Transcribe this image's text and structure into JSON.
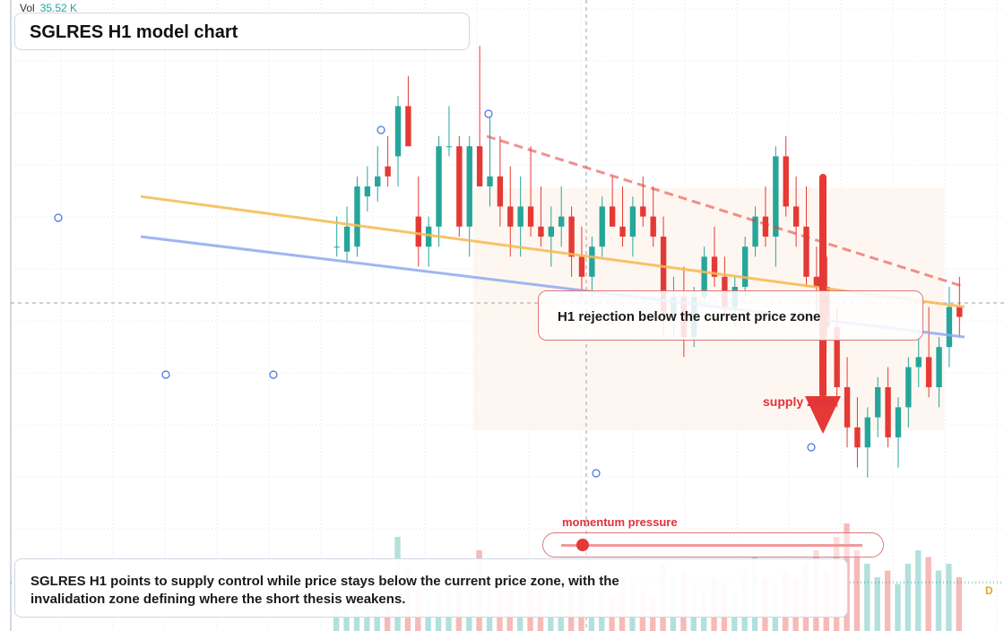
{
  "title": "SGLRES H1 model chart",
  "volume": {
    "label": "Vol",
    "value": "35.52 K"
  },
  "callout": "H1 rejection below the current price zone",
  "zone_label": "supply zone",
  "momentum": {
    "label": "momentum pressure",
    "level": 0.07
  },
  "summary": "SGLRES H1 points to supply control while price stays below the current price zone, with the invalidation zone defining where the short thesis weakens.",
  "badge": "D",
  "colors": {
    "up": "#26a69a",
    "down": "#e53935",
    "ema_fast": "#f6b94f",
    "ema_slow": "#8faaf0",
    "accent": "#e53935",
    "grid": "#e3e6ec"
  },
  "chart_data": {
    "type": "candlestick",
    "title": "SGLRES H1 model chart",
    "ylim": [
      0,
      100
    ],
    "grid": true,
    "candles": [
      {
        "o": 58,
        "h": 64,
        "l": 56,
        "c": 58
      },
      {
        "o": 57,
        "h": 66,
        "l": 55,
        "c": 62
      },
      {
        "o": 58,
        "h": 72,
        "l": 56,
        "c": 70
      },
      {
        "o": 68,
        "h": 74,
        "l": 65,
        "c": 70
      },
      {
        "o": 70,
        "h": 78,
        "l": 67,
        "c": 72
      },
      {
        "o": 74,
        "h": 80,
        "l": 70,
        "c": 72
      },
      {
        "o": 76,
        "h": 88,
        "l": 70,
        "c": 86
      },
      {
        "o": 86,
        "h": 92,
        "l": 78,
        "c": 78
      },
      {
        "o": 64,
        "h": 72,
        "l": 54,
        "c": 58
      },
      {
        "o": 58,
        "h": 64,
        "l": 54,
        "c": 62
      },
      {
        "o": 62,
        "h": 80,
        "l": 58,
        "c": 78
      },
      {
        "o": 78,
        "h": 86,
        "l": 76,
        "c": 78
      },
      {
        "o": 78,
        "h": 80,
        "l": 60,
        "c": 62
      },
      {
        "o": 62,
        "h": 80,
        "l": 56,
        "c": 78
      },
      {
        "o": 78,
        "h": 98,
        "l": 70,
        "c": 70
      },
      {
        "o": 70,
        "h": 84,
        "l": 66,
        "c": 72
      },
      {
        "o": 72,
        "h": 80,
        "l": 62,
        "c": 66
      },
      {
        "o": 66,
        "h": 74,
        "l": 56,
        "c": 62
      },
      {
        "o": 62,
        "h": 72,
        "l": 56,
        "c": 66
      },
      {
        "o": 66,
        "h": 78,
        "l": 60,
        "c": 62
      },
      {
        "o": 62,
        "h": 70,
        "l": 58,
        "c": 60
      },
      {
        "o": 60,
        "h": 66,
        "l": 54,
        "c": 62
      },
      {
        "o": 62,
        "h": 70,
        "l": 58,
        "c": 64
      },
      {
        "o": 64,
        "h": 66,
        "l": 52,
        "c": 56
      },
      {
        "o": 56,
        "h": 62,
        "l": 48,
        "c": 52
      },
      {
        "o": 52,
        "h": 60,
        "l": 48,
        "c": 58
      },
      {
        "o": 58,
        "h": 68,
        "l": 56,
        "c": 66
      },
      {
        "o": 66,
        "h": 72,
        "l": 62,
        "c": 62
      },
      {
        "o": 62,
        "h": 70,
        "l": 58,
        "c": 60
      },
      {
        "o": 60,
        "h": 68,
        "l": 56,
        "c": 66
      },
      {
        "o": 66,
        "h": 72,
        "l": 62,
        "c": 64
      },
      {
        "o": 64,
        "h": 70,
        "l": 58,
        "c": 60
      },
      {
        "o": 60,
        "h": 64,
        "l": 40,
        "c": 44
      },
      {
        "o": 44,
        "h": 52,
        "l": 40,
        "c": 48
      },
      {
        "o": 48,
        "h": 54,
        "l": 36,
        "c": 40
      },
      {
        "o": 40,
        "h": 50,
        "l": 38,
        "c": 48
      },
      {
        "o": 48,
        "h": 58,
        "l": 46,
        "c": 56
      },
      {
        "o": 56,
        "h": 62,
        "l": 50,
        "c": 52
      },
      {
        "o": 52,
        "h": 56,
        "l": 44,
        "c": 46
      },
      {
        "o": 46,
        "h": 52,
        "l": 42,
        "c": 50
      },
      {
        "o": 50,
        "h": 60,
        "l": 48,
        "c": 58
      },
      {
        "o": 58,
        "h": 66,
        "l": 56,
        "c": 64
      },
      {
        "o": 64,
        "h": 70,
        "l": 58,
        "c": 60
      },
      {
        "o": 60,
        "h": 78,
        "l": 54,
        "c": 76
      },
      {
        "o": 76,
        "h": 80,
        "l": 64,
        "c": 66
      },
      {
        "o": 66,
        "h": 72,
        "l": 58,
        "c": 62
      },
      {
        "o": 62,
        "h": 70,
        "l": 50,
        "c": 52
      },
      {
        "o": 52,
        "h": 58,
        "l": 44,
        "c": 50
      },
      {
        "o": 50,
        "h": 56,
        "l": 40,
        "c": 42
      },
      {
        "o": 42,
        "h": 46,
        "l": 26,
        "c": 30
      },
      {
        "o": 30,
        "h": 36,
        "l": 18,
        "c": 22
      },
      {
        "o": 22,
        "h": 28,
        "l": 14,
        "c": 18
      },
      {
        "o": 18,
        "h": 26,
        "l": 12,
        "c": 24
      },
      {
        "o": 24,
        "h": 32,
        "l": 20,
        "c": 30
      },
      {
        "o": 30,
        "h": 34,
        "l": 18,
        "c": 20
      },
      {
        "o": 20,
        "h": 28,
        "l": 14,
        "c": 26
      },
      {
        "o": 26,
        "h": 36,
        "l": 22,
        "c": 34
      },
      {
        "o": 34,
        "h": 42,
        "l": 30,
        "c": 36
      },
      {
        "o": 36,
        "h": 46,
        "l": 28,
        "c": 30
      },
      {
        "o": 30,
        "h": 40,
        "l": 26,
        "c": 38
      },
      {
        "o": 38,
        "h": 50,
        "l": 34,
        "c": 46
      },
      {
        "o": 46,
        "h": 52,
        "l": 40,
        "c": 44
      }
    ],
    "volume": [
      4,
      5,
      6,
      5,
      7,
      6,
      14,
      9,
      6,
      5,
      8,
      6,
      7,
      9,
      12,
      8,
      7,
      6,
      7,
      8,
      6,
      5,
      7,
      8,
      9,
      7,
      6,
      5,
      8,
      7,
      6,
      5,
      10,
      8,
      9,
      7,
      6,
      8,
      7,
      6,
      9,
      11,
      8,
      7,
      9,
      8,
      10,
      12,
      9,
      14,
      16,
      12,
      10,
      8,
      9,
      7,
      10,
      12,
      11,
      9,
      10,
      8
    ],
    "overlays": {
      "ema_fast": [
        [
          0,
          68
        ],
        [
          1,
          46
        ]
      ],
      "ema_slow": [
        [
          0,
          60
        ],
        [
          1,
          40
        ]
      ],
      "trendline": [
        [
          0.42,
          80
        ],
        [
          1,
          50
        ]
      ]
    }
  }
}
